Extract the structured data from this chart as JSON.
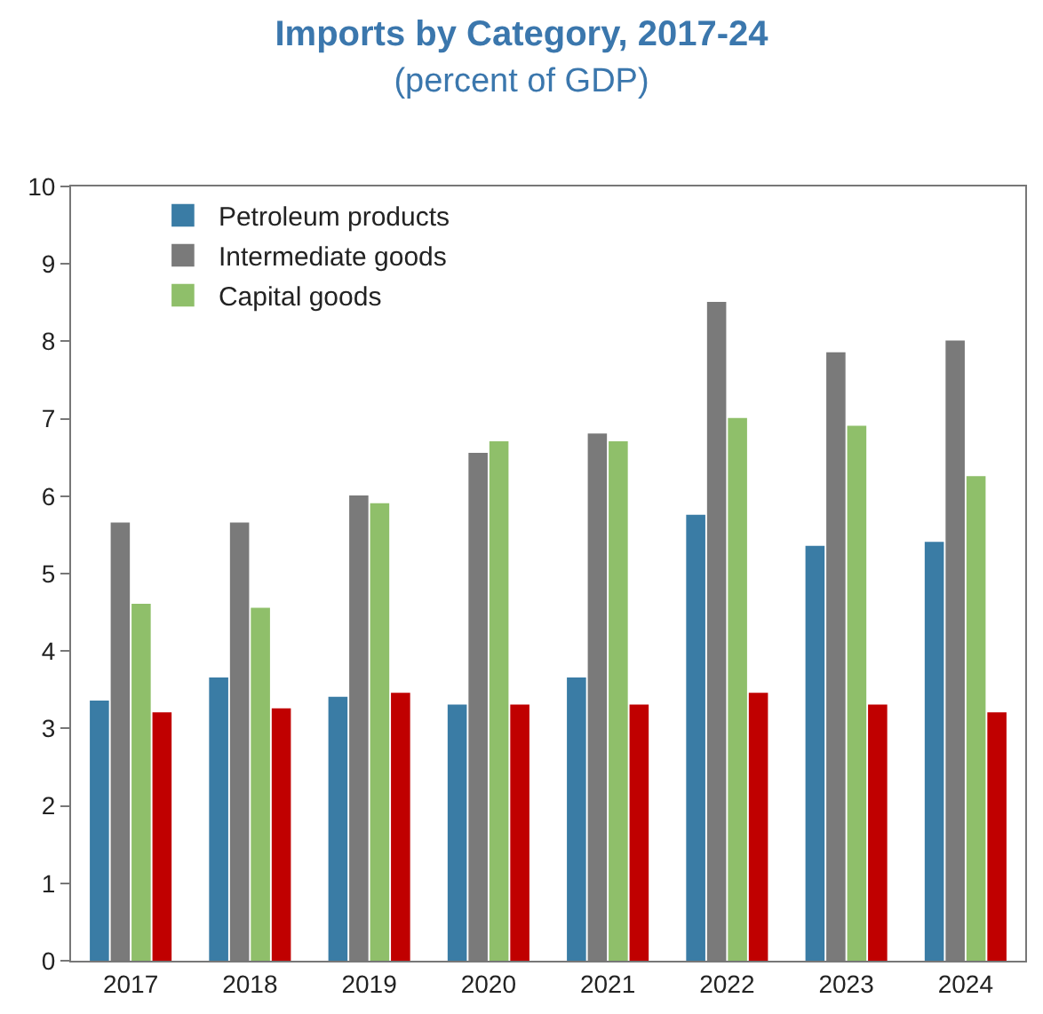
{
  "chart_data": {
    "type": "bar",
    "title": "Imports by Category, 2017-24",
    "subtitle": "(percent of GDP)",
    "categories": [
      "2017",
      "2018",
      "2019",
      "2020",
      "2021",
      "2022",
      "2023",
      "2024"
    ],
    "series": [
      {
        "name": "Petroleum products",
        "color": "#3a7ca5",
        "values": [
          3.35,
          3.65,
          3.4,
          3.3,
          3.65,
          5.75,
          5.35,
          5.4
        ]
      },
      {
        "name": "Intermediate goods",
        "color": "#7a7a7a",
        "values": [
          5.65,
          5.65,
          6.0,
          6.55,
          6.8,
          8.5,
          7.85,
          8.0
        ]
      },
      {
        "name": "Capital goods",
        "color": "#8fbf6a",
        "values": [
          4.6,
          4.55,
          5.9,
          6.7,
          6.7,
          7.0,
          6.9,
          6.25
        ]
      },
      {
        "color": "#c00000",
        "values": [
          3.2,
          3.25,
          3.45,
          3.3,
          3.3,
          3.45,
          3.3,
          3.2
        ]
      }
    ],
    "ylim": [
      0,
      10
    ],
    "yticks": [
      0,
      1,
      2,
      3,
      4,
      5,
      6,
      7,
      8,
      9,
      10
    ],
    "legend": "top left"
  }
}
